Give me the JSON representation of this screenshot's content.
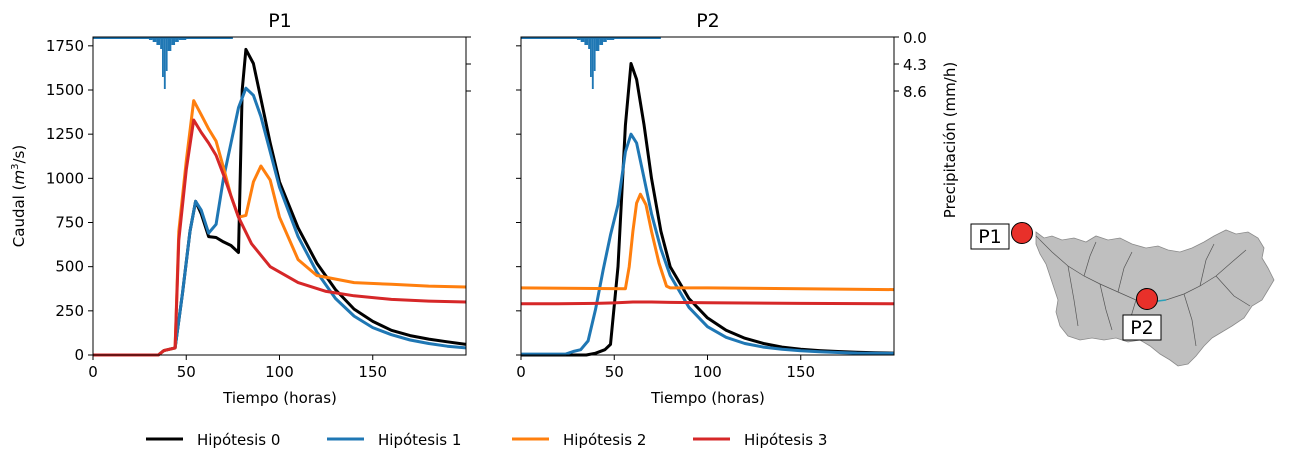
{
  "chart_data": [
    {
      "type": "line",
      "title": "P1",
      "xlabel": "Tiempo (horas)",
      "ylabel": "Caudal (m3/s)",
      "xlim": [
        0,
        200
      ],
      "ylim": [
        0,
        1800
      ],
      "xticks": [
        0,
        50,
        100,
        150
      ],
      "yticks": [
        0,
        250,
        500,
        750,
        1000,
        1250,
        1500,
        1750
      ],
      "series": [
        {
          "name": "Hipótesis 0",
          "x": [
            0,
            35,
            38,
            44,
            48,
            52,
            55,
            58,
            62,
            66,
            70,
            74,
            78,
            80,
            82,
            86,
            90,
            95,
            100,
            110,
            120,
            130,
            140,
            150,
            160,
            170,
            180,
            190,
            200
          ],
          "y": [
            0,
            0,
            25,
            40,
            350,
            700,
            870,
            800,
            670,
            665,
            640,
            620,
            580,
            1500,
            1730,
            1650,
            1450,
            1200,
            980,
            720,
            520,
            370,
            260,
            190,
            140,
            110,
            90,
            75,
            60
          ]
        },
        {
          "name": "Hipótesis 1",
          "x": [
            0,
            35,
            38,
            44,
            48,
            52,
            55,
            58,
            62,
            66,
            70,
            74,
            78,
            82,
            86,
            90,
            95,
            100,
            110,
            120,
            130,
            140,
            150,
            160,
            170,
            180,
            190,
            200
          ],
          "y": [
            0,
            0,
            25,
            40,
            350,
            700,
            870,
            820,
            690,
            740,
            1000,
            1200,
            1400,
            1510,
            1470,
            1350,
            1150,
            950,
            670,
            470,
            320,
            220,
            155,
            115,
            85,
            65,
            50,
            40
          ]
        },
        {
          "name": "Hipótesis 2",
          "x": [
            0,
            35,
            38,
            44,
            46,
            50,
            54,
            58,
            62,
            66,
            70,
            74,
            78,
            82,
            86,
            90,
            95,
            100,
            110,
            120,
            140,
            160,
            180,
            200
          ],
          "y": [
            0,
            0,
            25,
            40,
            700,
            1100,
            1440,
            1360,
            1280,
            1210,
            1060,
            900,
            780,
            790,
            980,
            1070,
            990,
            780,
            540,
            450,
            410,
            400,
            390,
            385
          ]
        },
        {
          "name": "Hipótesis 3",
          "x": [
            0,
            35,
            38,
            44,
            46,
            50,
            54,
            58,
            62,
            66,
            70,
            74,
            78,
            85,
            95,
            110,
            125,
            140,
            160,
            180,
            200
          ],
          "y": [
            0,
            0,
            25,
            40,
            650,
            1050,
            1330,
            1260,
            1200,
            1130,
            1020,
            900,
            780,
            630,
            500,
            410,
            360,
            335,
            315,
            305,
            300
          ]
        }
      ]
    },
    {
      "type": "line",
      "title": "P2",
      "xlabel": "Tiempo (horas)",
      "y2label": "Precipitación (mm/h)",
      "xlim": [
        0,
        200
      ],
      "ylim": [
        0,
        1800
      ],
      "xticks": [
        0,
        50,
        100,
        150
      ],
      "y2ticks": [
        "0.0",
        "4.3",
        "8.6"
      ],
      "series": [
        {
          "name": "Hipótesis 0",
          "x": [
            0,
            35,
            40,
            45,
            48,
            52,
            56,
            59,
            62,
            66,
            70,
            75,
            80,
            90,
            100,
            110,
            120,
            130,
            140,
            150,
            160,
            170,
            180,
            190,
            200
          ],
          "y": [
            0,
            0,
            10,
            30,
            60,
            500,
            1300,
            1650,
            1560,
            1300,
            1000,
            700,
            500,
            320,
            210,
            140,
            95,
            65,
            45,
            32,
            25,
            20,
            16,
            13,
            11
          ]
        },
        {
          "name": "Hipótesis 1",
          "x": [
            0,
            24,
            28,
            32,
            36,
            40,
            44,
            48,
            52,
            56,
            59,
            62,
            66,
            70,
            75,
            80,
            90,
            100,
            110,
            120,
            130,
            140,
            150,
            160,
            170,
            180,
            200
          ],
          "y": [
            5,
            5,
            20,
            30,
            80,
            260,
            480,
            680,
            850,
            1150,
            1250,
            1200,
            1000,
            800,
            600,
            450,
            270,
            160,
            100,
            65,
            45,
            32,
            24,
            18,
            14,
            11,
            9
          ]
        },
        {
          "name": "Hipótesis 2",
          "x": [
            0,
            56,
            58,
            60,
            62,
            64,
            67,
            70,
            74,
            78,
            80,
            100,
            150,
            200
          ],
          "y": [
            380,
            375,
            500,
            700,
            860,
            910,
            850,
            700,
            520,
            390,
            380,
            380,
            375,
            370
          ]
        },
        {
          "name": "Hipótesis 3",
          "x": [
            0,
            20,
            40,
            50,
            60,
            70,
            80,
            100,
            150,
            200
          ],
          "y": [
            290,
            290,
            292,
            295,
            300,
            300,
            298,
            296,
            292,
            290
          ]
        }
      ]
    }
  ],
  "legend": {
    "placement": "bottom-center",
    "items": [
      {
        "label": "Hipótesis 0",
        "color": "#000000"
      },
      {
        "label": "Hipótesis 1",
        "color": "#1f77b4"
      },
      {
        "label": "Hipótesis 2",
        "color": "#ff7f0e"
      },
      {
        "label": "Hipótesis 3",
        "color": "#d62728"
      }
    ]
  },
  "map": {
    "points": [
      {
        "label": "P1",
        "color": "#e8302a"
      },
      {
        "label": "P2",
        "color": "#e8302a"
      }
    ],
    "basin_color": "#bfbfbf"
  }
}
